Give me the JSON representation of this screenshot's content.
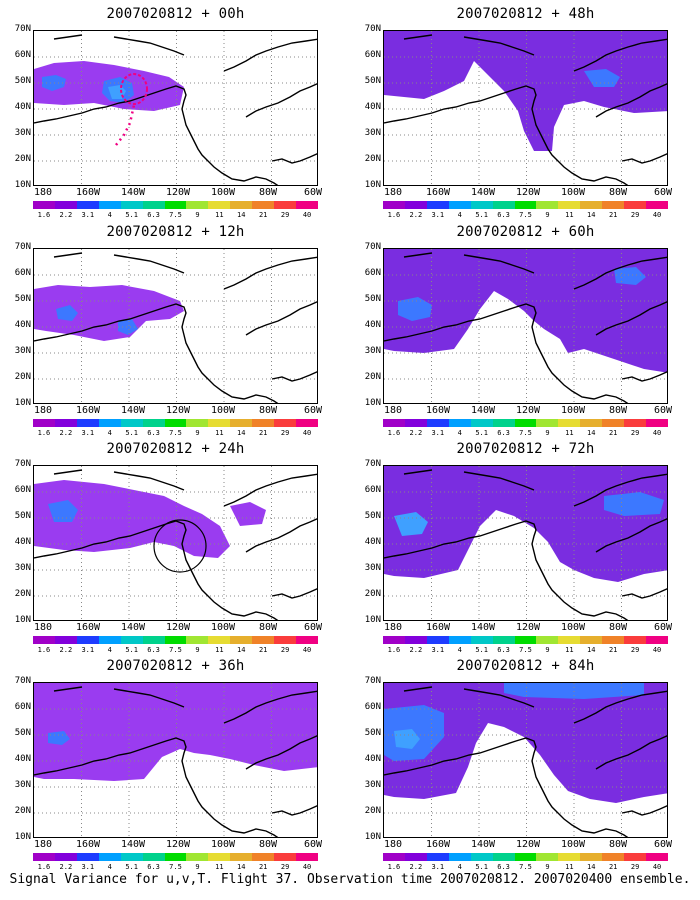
{
  "panels": [
    {
      "title": "2007020812 + 00h",
      "key": "00"
    },
    {
      "title": "2007020812 + 48h",
      "key": "48"
    },
    {
      "title": "2007020812 + 12h",
      "key": "12"
    },
    {
      "title": "2007020812 + 60h",
      "key": "60"
    },
    {
      "title": "2007020812 + 24h",
      "key": "24"
    },
    {
      "title": "2007020812 + 72h",
      "key": "72"
    },
    {
      "title": "2007020812 + 36h",
      "key": "36"
    },
    {
      "title": "2007020812 + 84h",
      "key": "84"
    }
  ],
  "lat_labels": [
    "70N",
    "60N",
    "50N",
    "40N",
    "30N",
    "20N",
    "10N"
  ],
  "lon_labels": [
    "180",
    "160W",
    "140W",
    "120W",
    "100W",
    "80W",
    "60W"
  ],
  "colorbar": {
    "colors": [
      "#a000c8",
      "#8200dc",
      "#1e3cff",
      "#00a0ff",
      "#00c8c8",
      "#00d28c",
      "#00dc00",
      "#a0e632",
      "#e6dc32",
      "#e6af2d",
      "#f08228",
      "#fa3c3c",
      "#f00082"
    ],
    "labels": [
      "1.6",
      "2.2",
      "3.1",
      "4",
      "5.1",
      "6.3",
      "7.5",
      "9",
      "11",
      "14",
      "21",
      "29",
      "40"
    ]
  },
  "caption": "Signal Variance for u,v,T. Flight 37. Observation time 2007020812. 2007020400 ensemble.",
  "colors": {
    "low": "#9a3cf0",
    "mid": "#7a2de0",
    "high": "#3c78ff",
    "deep": "#3fa0ff",
    "land": "#000000"
  }
}
